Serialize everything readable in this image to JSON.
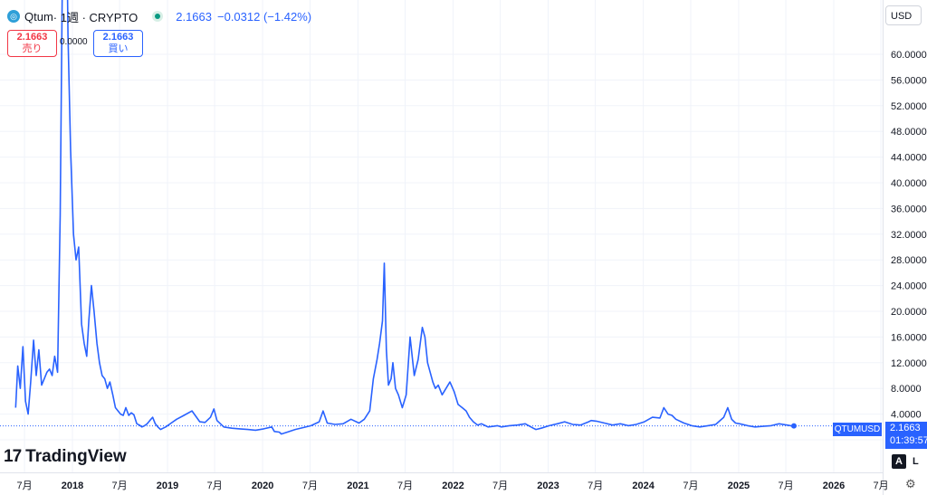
{
  "header": {
    "symbol": "Qtum",
    "interval": " · 1週 · CRYPTO",
    "last": "2.1663",
    "change": "−0.0312 (−1.42%)"
  },
  "orders": {
    "sell_price": "2.1663",
    "sell_label": "売り",
    "spread": "0.0000",
    "buy_price": "2.1663",
    "buy_label": "買い"
  },
  "currency": "USD",
  "tags": {
    "symbol": "QTUMUSD",
    "price": "2.1663",
    "countdown": "01:39:57"
  },
  "branding": {
    "name": "TradingView"
  },
  "controls": {
    "auto": "A",
    "log": "L"
  },
  "colors": {
    "line": "#2962ff",
    "sell": "#f23645",
    "buy": "#2962ff",
    "up": "#089981"
  },
  "chart_data": {
    "type": "line",
    "series": [
      {
        "name": "QTUMUSD",
        "x": [
          "2017-05-28",
          "2017-06-05",
          "2017-06-15",
          "2017-06-25",
          "2017-07-05",
          "2017-07-15",
          "2017-07-25",
          "2017-08-05",
          "2017-08-15",
          "2017-08-25",
          "2017-09-05",
          "2017-09-15",
          "2017-09-25",
          "2017-10-05",
          "2017-10-15",
          "2017-10-25",
          "2017-11-05",
          "2017-11-15",
          "2017-11-25",
          "2017-12-05",
          "2017-12-15",
          "2017-12-25",
          "2018-01-05",
          "2018-01-15",
          "2018-01-25",
          "2018-02-05",
          "2018-02-15",
          "2018-02-25",
          "2018-03-05",
          "2018-03-15",
          "2018-03-25",
          "2018-04-05",
          "2018-04-15",
          "2018-04-25",
          "2018-05-05",
          "2018-05-15",
          "2018-05-25",
          "2018-06-05",
          "2018-06-15",
          "2018-06-25",
          "2018-07-05",
          "2018-07-15",
          "2018-07-25",
          "2018-08-05",
          "2018-08-15",
          "2018-08-25",
          "2018-09-05",
          "2018-09-15",
          "2018-09-25",
          "2018-10-05",
          "2018-10-15",
          "2018-10-25",
          "2018-11-05",
          "2018-11-15",
          "2018-11-25",
          "2018-12-05",
          "2018-12-15",
          "2018-12-25",
          "2019-01-15",
          "2019-02-05",
          "2019-03-05",
          "2019-04-05",
          "2019-05-05",
          "2019-05-25",
          "2019-06-15",
          "2019-06-28",
          "2019-07-10",
          "2019-08-05",
          "2019-09-05",
          "2019-10-05",
          "2019-11-05",
          "2019-12-05",
          "2020-01-05",
          "2020-02-05",
          "2020-02-15",
          "2020-03-05",
          "2020-03-13",
          "2020-04-05",
          "2020-05-05",
          "2020-06-05",
          "2020-07-05",
          "2020-08-05",
          "2020-08-20",
          "2020-09-05",
          "2020-10-05",
          "2020-11-05",
          "2020-12-05",
          "2021-01-05",
          "2021-01-25",
          "2021-02-15",
          "2021-03-01",
          "2021-03-15",
          "2021-03-25",
          "2021-04-05",
          "2021-04-12",
          "2021-04-20",
          "2021-04-28",
          "2021-05-08",
          "2021-05-15",
          "2021-05-25",
          "2021-06-05",
          "2021-06-20",
          "2021-07-05",
          "2021-07-20",
          "2021-08-05",
          "2021-08-20",
          "2021-09-05",
          "2021-09-15",
          "2021-09-25",
          "2021-10-05",
          "2021-10-15",
          "2021-10-25",
          "2021-11-05",
          "2021-11-20",
          "2021-12-05",
          "2021-12-20",
          "2022-01-05",
          "2022-01-20",
          "2022-02-05",
          "2022-02-20",
          "2022-03-05",
          "2022-03-20",
          "2022-04-05",
          "2022-04-20",
          "2022-05-05",
          "2022-05-15",
          "2022-06-05",
          "2022-06-20",
          "2022-07-05",
          "2022-08-05",
          "2022-09-05",
          "2022-10-05",
          "2022-11-05",
          "2022-11-15",
          "2022-12-05",
          "2023-01-05",
          "2023-02-05",
          "2023-03-05",
          "2023-04-05",
          "2023-05-05",
          "2023-06-05",
          "2023-06-15",
          "2023-07-05",
          "2023-08-05",
          "2023-09-05",
          "2023-10-05",
          "2023-11-05",
          "2023-12-05",
          "2024-01-05",
          "2024-02-05",
          "2024-03-05",
          "2024-03-20",
          "2024-04-05",
          "2024-04-20",
          "2024-05-05",
          "2024-06-05",
          "2024-07-05",
          "2024-08-05",
          "2024-09-05",
          "2024-10-05",
          "2024-11-05",
          "2024-11-20",
          "2024-12-05",
          "2024-12-20",
          "2025-01-05",
          "2025-02-05",
          "2025-03-05",
          "2025-04-05",
          "2025-05-05",
          "2025-06-05",
          "2025-07-05",
          "2025-07-20",
          "2025-08-01"
        ],
        "y": [
          5.0,
          11.5,
          8.0,
          14.5,
          6.0,
          4.0,
          9.0,
          15.5,
          10.0,
          14.0,
          8.5,
          9.5,
          10.5,
          11.0,
          10.0,
          13.0,
          10.5,
          35.0,
          80.0,
          98.0,
          63.0,
          45.0,
          32.0,
          28.0,
          30.0,
          18.0,
          15.0,
          13.0,
          18.5,
          24.0,
          20.0,
          15.0,
          12.0,
          10.0,
          9.5,
          8.0,
          9.0,
          7.0,
          5.0,
          4.5,
          4.0,
          3.8,
          5.0,
          3.8,
          4.2,
          3.9,
          2.5,
          2.3,
          2.0,
          2.2,
          2.5,
          3.0,
          3.5,
          2.5,
          2.0,
          1.6,
          1.8,
          2.0,
          2.6,
          3.2,
          3.8,
          4.5,
          2.8,
          2.7,
          3.5,
          4.8,
          3.0,
          2.0,
          1.8,
          1.7,
          1.6,
          1.5,
          1.7,
          2.0,
          1.3,
          1.2,
          0.9,
          1.2,
          1.6,
          1.9,
          2.2,
          2.8,
          4.5,
          2.6,
          2.4,
          2.5,
          3.2,
          2.6,
          3.2,
          4.5,
          9.5,
          12.5,
          15.0,
          18.5,
          27.5,
          14.0,
          8.5,
          9.5,
          12.0,
          8.0,
          7.0,
          5.0,
          7.0,
          16.0,
          10.0,
          12.5,
          17.5,
          16.0,
          12.0,
          10.5,
          9.0,
          8.0,
          8.5,
          7.0,
          8.0,
          9.0,
          7.5,
          5.5,
          5.0,
          4.5,
          3.5,
          2.8,
          2.3,
          2.5,
          2.2,
          2.0,
          2.1,
          2.2,
          2.0,
          2.2,
          2.3,
          2.5,
          1.8,
          1.6,
          1.8,
          2.2,
          2.5,
          2.8,
          2.4,
          2.3,
          2.8,
          3.0,
          2.9,
          2.6,
          2.3,
          2.5,
          2.2,
          2.4,
          2.8,
          3.5,
          3.4,
          5.0,
          4.0,
          3.8,
          3.2,
          2.6,
          2.2,
          2.0,
          2.2,
          2.4,
          3.5,
          5.0,
          3.2,
          2.6,
          2.5,
          2.2,
          2.0,
          2.1,
          2.2,
          2.5,
          2.3,
          2.2,
          2.1663
        ]
      }
    ],
    "ylim": [
      0,
      64
    ],
    "y_ticks": [
      0,
      4,
      8,
      12,
      16,
      20,
      24,
      28,
      32,
      36,
      40,
      44,
      48,
      52,
      56,
      60
    ],
    "x_ticks": [
      {
        "date": "2017-07-01",
        "label": "7月",
        "bold": false
      },
      {
        "date": "2018-01-01",
        "label": "2018",
        "bold": true
      },
      {
        "date": "2018-07-01",
        "label": "7月",
        "bold": false
      },
      {
        "date": "2019-01-01",
        "label": "2019",
        "bold": true
      },
      {
        "date": "2019-07-01",
        "label": "7月",
        "bold": false
      },
      {
        "date": "2020-01-01",
        "label": "2020",
        "bold": true
      },
      {
        "date": "2020-07-01",
        "label": "7月",
        "bold": false
      },
      {
        "date": "2021-01-01",
        "label": "2021",
        "bold": true
      },
      {
        "date": "2021-07-01",
        "label": "7月",
        "bold": false
      },
      {
        "date": "2022-01-01",
        "label": "2022",
        "bold": true
      },
      {
        "date": "2022-07-01",
        "label": "7月",
        "bold": false
      },
      {
        "date": "2023-01-01",
        "label": "2023",
        "bold": true
      },
      {
        "date": "2023-07-01",
        "label": "7月",
        "bold": false
      },
      {
        "date": "2024-01-01",
        "label": "2024",
        "bold": true
      },
      {
        "date": "2024-07-01",
        "label": "7月",
        "bold": false
      },
      {
        "date": "2025-01-01",
        "label": "2025",
        "bold": true
      },
      {
        "date": "2025-07-01",
        "label": "7月",
        "bold": false
      },
      {
        "date": "2026-01-01",
        "label": "2026",
        "bold": true
      },
      {
        "date": "2026-07-01",
        "label": "7月",
        "bold": false
      }
    ],
    "grid": true,
    "legend": "top-left"
  }
}
